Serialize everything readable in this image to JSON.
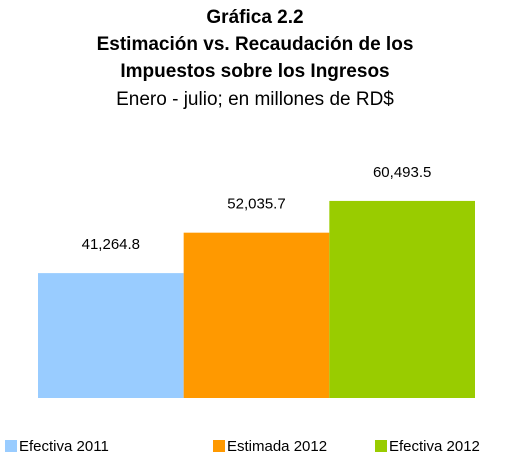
{
  "chart_data": {
    "type": "bar",
    "title": "Gráfica 2.2",
    "title_lines": [
      "Estimación vs. Recaudación de los",
      "Impuestos sobre los Ingresos"
    ],
    "subtitle": "Enero - julio; en millones de RD$",
    "series": [
      {
        "name": "Efectiva 2011",
        "color": "#99ccff",
        "values": [
          41264.8
        ],
        "value_labels": [
          "41,264.8"
        ]
      },
      {
        "name": "Estimada 2012",
        "color": "#ff9900",
        "values": [
          52035.7
        ],
        "value_labels": [
          "52,035.7"
        ]
      },
      {
        "name": "Efectiva 2012",
        "color": "#99cc00",
        "values": [
          60493.5
        ],
        "value_labels": [
          "60,493.5"
        ]
      }
    ],
    "ylim": [
      8000,
      65000
    ],
    "legend": "bottom"
  }
}
